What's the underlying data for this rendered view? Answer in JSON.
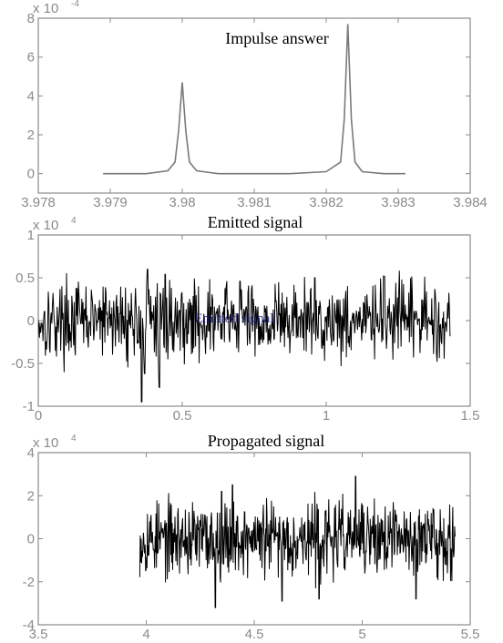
{
  "chart_data": [
    {
      "type": "line",
      "title": "Impulse answer",
      "xlabel": "",
      "ylabel": "",
      "xlim": [
        3.978,
        3.984
      ],
      "ylim": [
        -1,
        8
      ],
      "xticks": [
        3.978,
        3.979,
        3.98,
        3.981,
        3.982,
        3.983,
        3.984
      ],
      "xtick_labels": [
        "3.978",
        "3.979",
        "3.98",
        "3.981",
        "3.982",
        "3.983",
        "3.984"
      ],
      "yticks": [
        0,
        2,
        4,
        6,
        8
      ],
      "ytick_labels": [
        "0",
        "2",
        "4",
        "6",
        "8"
      ],
      "y_exponent": {
        "base": "x 10",
        "power": "-4"
      },
      "line_color": "#7a7a7a",
      "series": [
        {
          "x": [
            3.9789,
            3.9795,
            3.9798,
            3.9799,
            3.97995,
            3.98,
            3.98005,
            3.9801,
            3.9802,
            3.9805,
            3.981,
            3.9815,
            3.982,
            3.9822,
            3.98225,
            3.9823,
            3.98235,
            3.9824,
            3.9825,
            3.9828,
            3.9831
          ],
          "y": [
            0,
            0,
            0.15,
            0.6,
            2.2,
            4.7,
            2.2,
            0.6,
            0.15,
            0,
            0,
            0,
            0.1,
            0.6,
            2.8,
            7.7,
            2.8,
            0.6,
            0.1,
            0,
            0
          ]
        }
      ]
    },
    {
      "type": "line",
      "title": "Emitted signal",
      "xlabel": "",
      "ylabel": "",
      "xlim": [
        0,
        1.5
      ],
      "ylim": [
        -1,
        1
      ],
      "xticks": [
        0,
        0.5,
        1,
        1.5
      ],
      "xtick_labels": [
        "0",
        "0.5",
        "1",
        "1.5"
      ],
      "yticks": [
        -1,
        -0.5,
        0,
        0.5,
        1
      ],
      "ytick_labels": [
        "-1",
        "-0.5",
        "0",
        "0.5",
        "1"
      ],
      "y_exponent": {
        "base": "x 10",
        "power": "4"
      },
      "legend_text": "Emitted signal",
      "line_color": "#000000",
      "noise": {
        "x_start": 0.0,
        "x_end": 1.43,
        "samples": 700,
        "amplitude": 0.22,
        "spikes": [
          {
            "x": 0.36,
            "y": -0.95
          },
          {
            "x": 0.37,
            "y": -0.62
          },
          {
            "x": 0.42,
            "y": -0.78
          },
          {
            "x": 0.44,
            "y": 0.54
          },
          {
            "x": 0.38,
            "y": 0.6
          },
          {
            "x": 0.7,
            "y": 0.46
          },
          {
            "x": 0.96,
            "y": 0.5
          },
          {
            "x": 1.2,
            "y": 0.52
          }
        ],
        "seed": 17
      }
    },
    {
      "type": "line",
      "title": "Propagated signal",
      "xlabel": "",
      "ylabel": "",
      "xlim": [
        3.5,
        5.5
      ],
      "ylim": [
        -4,
        4
      ],
      "xticks": [
        3.5,
        4,
        4.5,
        5,
        5.5
      ],
      "xtick_labels": [
        "3.5",
        "4",
        "4.5",
        "5",
        "5.5"
      ],
      "yticks": [
        -4,
        -2,
        0,
        2,
        4
      ],
      "ytick_labels": [
        "-4",
        "-2",
        "0",
        "2",
        "4"
      ],
      "y_exponent": {
        "base": "x 10",
        "power": "4"
      },
      "line_color": "#000000",
      "noise": {
        "x_start": 3.97,
        "x_end": 5.43,
        "samples": 700,
        "amplitude": 0.85,
        "spikes": [
          {
            "x": 4.32,
            "y": -3.2
          },
          {
            "x": 4.4,
            "y": 2.5
          },
          {
            "x": 4.63,
            "y": -2.9
          },
          {
            "x": 4.97,
            "y": 2.9
          },
          {
            "x": 4.8,
            "y": -2.8
          },
          {
            "x": 5.25,
            "y": -2.8
          },
          {
            "x": 4.35,
            "y": 2.2
          }
        ],
        "seed": 53
      }
    }
  ]
}
